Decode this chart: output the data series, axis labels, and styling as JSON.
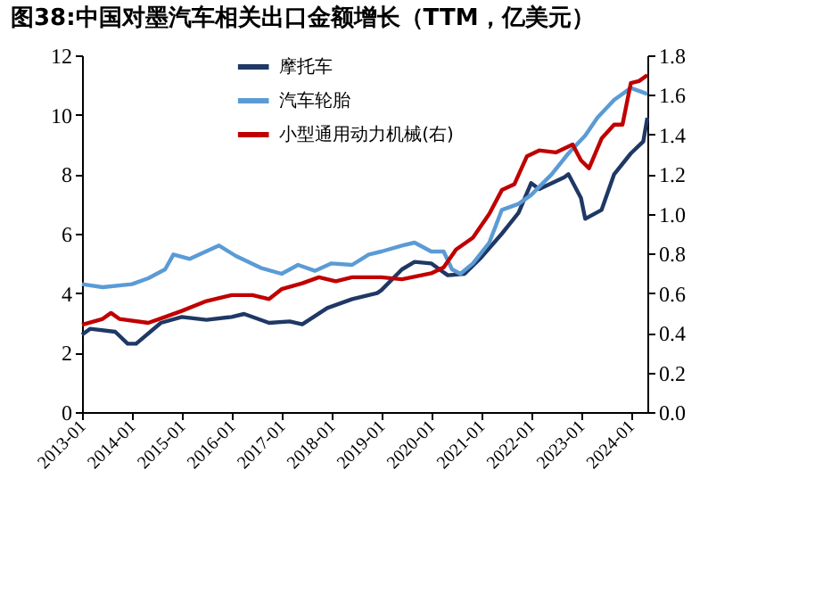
{
  "chart_data": {
    "type": "line",
    "title": "图38:中国对墨汽车相关出口金额增长（TTM，亿美元）",
    "xlim": [
      "2013-01",
      "2024-05"
    ],
    "xticks": [
      {
        "value": "2013-01",
        "label": "2013-01"
      },
      {
        "value": "2014-01",
        "label": "2014-01"
      },
      {
        "value": "2015-01",
        "label": "2015-01"
      },
      {
        "value": "2016-01",
        "label": "2016-01"
      },
      {
        "value": "2017-01",
        "label": "2017-01"
      },
      {
        "value": "2018-01",
        "label": "2018-01"
      },
      {
        "value": "2019-01",
        "label": "2019-01"
      },
      {
        "value": "2020-01",
        "label": "2020-01"
      },
      {
        "value": "2021-01",
        "label": "2021-01"
      },
      {
        "value": "2022-01",
        "label": "2022-01"
      },
      {
        "value": "2023-01",
        "label": "2023-01"
      },
      {
        "value": "2024-01",
        "label": "2024-01"
      }
    ],
    "ylim": [
      0,
      12
    ],
    "yticks": [
      0,
      2,
      4,
      6,
      8,
      10,
      12
    ],
    "y2lim": [
      0,
      1.8
    ],
    "y2ticks": [
      {
        "value": 0,
        "label": "0.0"
      },
      {
        "value": 0.2,
        "label": "0.2"
      },
      {
        "value": 0.4,
        "label": "0.4"
      },
      {
        "value": 0.6,
        "label": "0.6"
      },
      {
        "value": 0.8,
        "label": "0.8"
      },
      {
        "value": 1.0,
        "label": "1.0"
      },
      {
        "value": 1.2,
        "label": "1.2"
      },
      {
        "value": 1.4,
        "label": "1.4"
      },
      {
        "value": 1.6,
        "label": "1.6"
      },
      {
        "value": 1.8,
        "label": "1.8"
      }
    ],
    "grid": false,
    "legend": "top",
    "marker": "none",
    "line_style": "solid",
    "series": [
      {
        "name": "摩托车",
        "color": "#1f3864",
        "x": [
          "2013-01",
          "2013-03",
          "2013-09",
          "2013-12",
          "2014-02",
          "2014-08",
          "2015-01",
          "2015-07",
          "2016-01",
          "2016-04",
          "2016-10",
          "2017-03",
          "2017-06",
          "2017-12",
          "2018-06",
          "2018-12",
          "2019-01",
          "2019-06",
          "2019-09",
          "2020-01",
          "2020-03",
          "2020-05",
          "2020-09",
          "2021-01",
          "2021-06",
          "2021-10",
          "2022-01",
          "2022-03",
          "2022-09",
          "2022-10",
          "2023-01",
          "2023-02",
          "2023-06",
          "2023-09",
          "2024-01",
          "2024-04",
          "2024-05"
        ],
        "values": [
          2.6,
          2.8,
          2.7,
          2.3,
          2.3,
          3.0,
          3.2,
          3.1,
          3.2,
          3.3,
          3.0,
          3.05,
          2.95,
          3.5,
          3.8,
          4.0,
          4.1,
          4.8,
          5.05,
          5.0,
          4.8,
          4.6,
          4.65,
          5.2,
          6.0,
          6.7,
          7.7,
          7.5,
          7.9,
          8.0,
          7.2,
          6.5,
          6.8,
          8.0,
          8.7,
          9.1,
          9.9
        ]
      },
      {
        "name": "汽车轮胎",
        "color": "#5b9bd5",
        "x": [
          "2013-01",
          "2013-06",
          "2014-01",
          "2014-05",
          "2014-09",
          "2014-11",
          "2015-03",
          "2015-06",
          "2015-10",
          "2016-02",
          "2016-08",
          "2017-01",
          "2017-05",
          "2017-09",
          "2018-01",
          "2018-06",
          "2018-10",
          "2019-01",
          "2019-06",
          "2019-09",
          "2020-01",
          "2020-04",
          "2020-06",
          "2020-08",
          "2020-11",
          "2021-03",
          "2021-06",
          "2021-10",
          "2022-01",
          "2022-06",
          "2022-10",
          "2023-02",
          "2023-05",
          "2023-09",
          "2024-01",
          "2024-05"
        ],
        "values": [
          4.3,
          4.2,
          4.3,
          4.5,
          4.8,
          5.3,
          5.15,
          5.35,
          5.6,
          5.25,
          4.85,
          4.65,
          4.95,
          4.75,
          5.0,
          4.95,
          5.3,
          5.4,
          5.6,
          5.7,
          5.4,
          5.4,
          4.8,
          4.65,
          5.0,
          5.7,
          6.8,
          7.0,
          7.3,
          8.0,
          8.7,
          9.3,
          9.9,
          10.5,
          10.9,
          10.7
        ]
      },
      {
        "name": "小型通用动力机械(右)",
        "color": "#c00000",
        "axis": "y2",
        "x": [
          "2013-01",
          "2013-06",
          "2013-08",
          "2013-10",
          "2014-05",
          "2014-09",
          "2015-01",
          "2015-07",
          "2016-01",
          "2016-06",
          "2016-10",
          "2017-01",
          "2017-06",
          "2017-10",
          "2018-02",
          "2018-06",
          "2019-01",
          "2019-06",
          "2020-01",
          "2020-04",
          "2020-07",
          "2020-11",
          "2021-03",
          "2021-06",
          "2021-09",
          "2021-12",
          "2022-03",
          "2022-07",
          "2022-11",
          "2023-01",
          "2023-03",
          "2023-06",
          "2023-09",
          "2023-11",
          "2024-01",
          "2024-03",
          "2024-05"
        ],
        "values": [
          0.44,
          0.47,
          0.5,
          0.47,
          0.45,
          0.48,
          0.51,
          0.56,
          0.59,
          0.59,
          0.57,
          0.62,
          0.65,
          0.68,
          0.66,
          0.68,
          0.68,
          0.67,
          0.7,
          0.73,
          0.82,
          0.88,
          1.0,
          1.12,
          1.15,
          1.29,
          1.32,
          1.31,
          1.35,
          1.27,
          1.23,
          1.38,
          1.45,
          1.45,
          1.66,
          1.67,
          1.7
        ]
      }
    ]
  }
}
